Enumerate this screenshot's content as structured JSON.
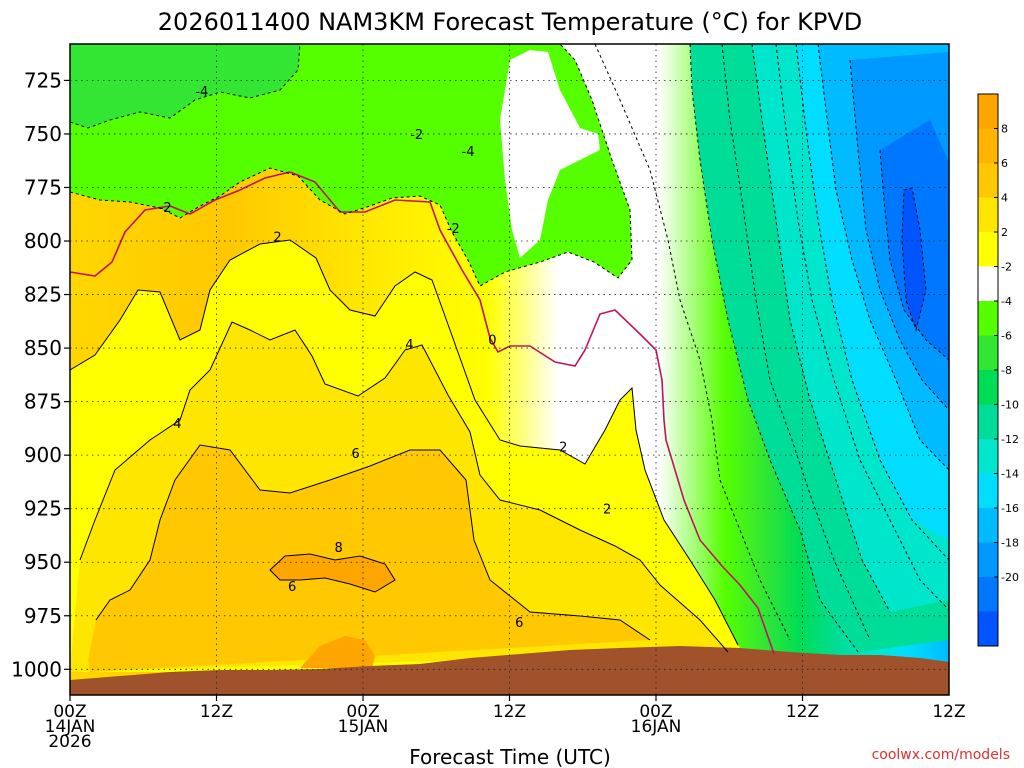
{
  "chart_data": {
    "type": "heatmap",
    "title": "2026011400 NAM3KM Forecast Temperature (°C) for KPVD",
    "xlabel": "Forecast Time (UTC)",
    "ylabel": "",
    "watermark": "coolwx.com/models",
    "x_range_hours": [
      0,
      36
    ],
    "y_range_hpa": [
      1012,
      708
    ],
    "y_ticks": [
      725,
      750,
      775,
      800,
      825,
      850,
      875,
      900,
      925,
      950,
      975,
      1000
    ],
    "x_ticks": [
      {
        "hour": 0,
        "lines": [
          "00Z",
          "14JAN",
          "2026"
        ]
      },
      {
        "hour": 6,
        "lines": [
          "12Z"
        ]
      },
      {
        "hour": 12,
        "lines": [
          "00Z",
          "15JAN"
        ]
      },
      {
        "hour": 18,
        "lines": [
          "12Z"
        ]
      },
      {
        "hour": 24,
        "lines": [
          "00Z",
          "16JAN"
        ]
      },
      {
        "hour": 30,
        "lines": [
          "12Z"
        ]
      }
    ],
    "colorbar": {
      "levels": [
        10,
        8,
        6,
        4,
        2,
        -2,
        -4,
        -6,
        -8,
        -10,
        -12,
        -14,
        -16,
        -18,
        -20,
        -22
      ],
      "labels": [
        "8",
        "6",
        "4",
        "2",
        "-2",
        "-4",
        "-6",
        "-8",
        "-10",
        "-12",
        "-14",
        "-16",
        "-18",
        "-20"
      ],
      "colors": [
        "#FFA500",
        "#FFB400",
        "#FFC800",
        "#FFE600",
        "#FFFF00",
        "#FFFFFF",
        "#55FF00",
        "#33E633",
        "#00DD55",
        "#00DD99",
        "#00E6CC",
        "#00DDFF",
        "#00BBFF",
        "#0099FF",
        "#0077FF",
        "#0055FF"
      ]
    },
    "terrain_color": "#A0522D",
    "freezing_line_color": "#C0135F",
    "contour_labels": [
      {
        "text": "-4",
        "hour": 5.4,
        "hpa": 730
      },
      {
        "text": "-2",
        "hour": 14.2,
        "hpa": 750
      },
      {
        "text": "-4",
        "hour": 16.3,
        "hpa": 758
      },
      {
        "text": "-2",
        "hour": 3.9,
        "hpa": 784
      },
      {
        "text": "-2",
        "hour": 15.7,
        "hpa": 794
      },
      {
        "text": "2",
        "hour": 8.5,
        "hpa": 798
      },
      {
        "text": "0",
        "hour": 17.3,
        "hpa": 846
      },
      {
        "text": "4",
        "hour": 13.9,
        "hpa": 848
      },
      {
        "text": "4",
        "hour": 4.4,
        "hpa": 885
      },
      {
        "text": "6",
        "hour": 11.7,
        "hpa": 899
      },
      {
        "text": "2",
        "hour": 20.2,
        "hpa": 896
      },
      {
        "text": "2",
        "hour": 22.0,
        "hpa": 925
      },
      {
        "text": "8",
        "hour": 11.0,
        "hpa": 943
      },
      {
        "text": "6",
        "hour": 9.1,
        "hpa": 961
      },
      {
        "text": "6",
        "hour": 18.4,
        "hpa": 978
      }
    ]
  }
}
